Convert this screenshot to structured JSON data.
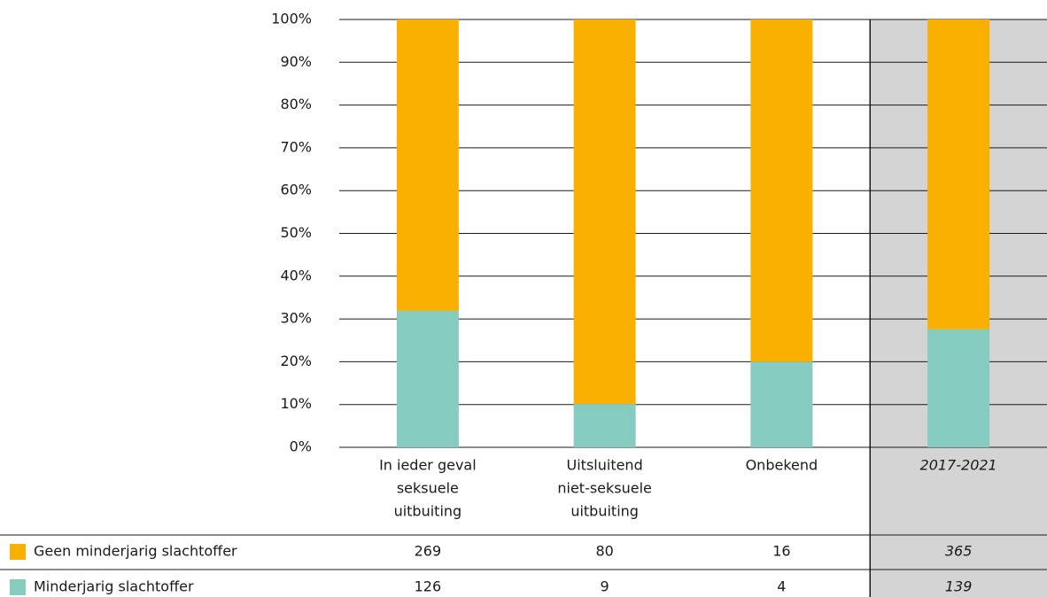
{
  "chart_data": {
    "type": "stacked_bar_100",
    "categories": [
      [
        "In ieder geval",
        "seksuele",
        "uitbuiting"
      ],
      [
        "Uitsluitend",
        "niet-seksuele",
        "uitbuiting"
      ],
      [
        "Onbekend"
      ],
      [
        "2017-2021"
      ]
    ],
    "series": [
      {
        "name": "Geen minderjarig slachtoffer",
        "color": "#f9b000",
        "values": [
          68.1,
          89.9,
          80,
          72.4
        ],
        "counts": [
          269,
          80,
          16,
          365
        ]
      },
      {
        "name": "Minderjarig slachtoffer",
        "color": "#85cbbf",
        "values": [
          31.9,
          10.1,
          20,
          27.6
        ],
        "counts": [
          126,
          9,
          4,
          139
        ]
      }
    ],
    "ylim": [
      0,
      100
    ],
    "yticks": [
      {
        "value": 0,
        "label": "0%"
      },
      {
        "value": 10,
        "label": "10%"
      },
      {
        "value": 20,
        "label": "20%"
      },
      {
        "value": 30,
        "label": "30%"
      },
      {
        "value": 40,
        "label": "40%"
      },
      {
        "value": 50,
        "label": "50%"
      },
      {
        "value": 60,
        "label": "60%"
      },
      {
        "value": 70,
        "label": "70%"
      },
      {
        "value": 80,
        "label": "80%"
      },
      {
        "value": 90,
        "label": "90%"
      },
      {
        "value": 100,
        "label": "100%"
      }
    ],
    "grid": true
  }
}
